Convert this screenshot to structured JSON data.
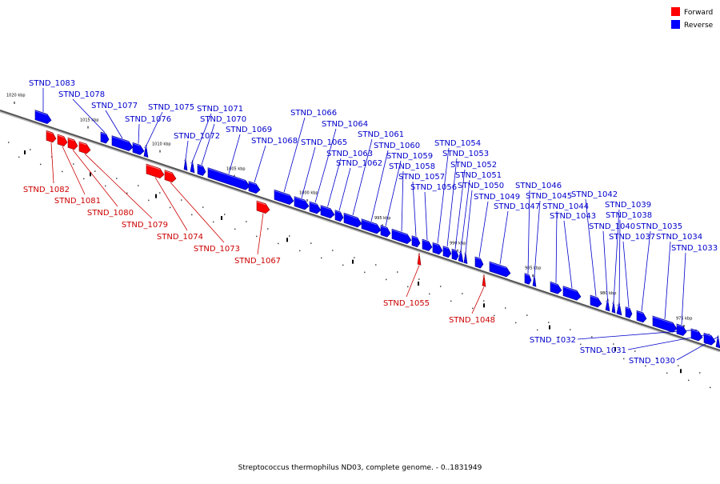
{
  "caption": "Streptococcus thermophilus ND03, complete genome. - 0..1831949",
  "legend": [
    {
      "label": "Forward",
      "color": "#ff0000"
    },
    {
      "label": "Reverse",
      "color": "#0000ff"
    }
  ],
  "colors": {
    "forward_fill": "#ff0000",
    "forward_label": "#cc0000",
    "reverse_fill": "#0000ff",
    "reverse_label": "#0000cc",
    "backbone": "#555555"
  },
  "axis_ticks_kbp": [
    975,
    980,
    985,
    990,
    995,
    1000,
    1005,
    1010,
    1015,
    1020
  ],
  "tick_unit": "kbp",
  "genes": [
    {
      "label": "STND_1083",
      "strand": "reverse"
    },
    {
      "label": "STND_1078",
      "strand": "reverse"
    },
    {
      "label": "STND_1077",
      "strand": "reverse"
    },
    {
      "label": "STND_1076",
      "strand": "reverse"
    },
    {
      "label": "STND_1075",
      "strand": "reverse"
    },
    {
      "label": "STND_1072",
      "strand": "reverse"
    },
    {
      "label": "STND_1071",
      "strand": "reverse"
    },
    {
      "label": "STND_1070",
      "strand": "reverse"
    },
    {
      "label": "STND_1069",
      "strand": "reverse"
    },
    {
      "label": "STND_1068",
      "strand": "reverse"
    },
    {
      "label": "STND_1066",
      "strand": "reverse"
    },
    {
      "label": "STND_1065",
      "strand": "reverse"
    },
    {
      "label": "STND_1064",
      "strand": "reverse"
    },
    {
      "label": "STND_1063",
      "strand": "reverse"
    },
    {
      "label": "STND_1062",
      "strand": "reverse"
    },
    {
      "label": "STND_1061",
      "strand": "reverse"
    },
    {
      "label": "STND_1060",
      "strand": "reverse"
    },
    {
      "label": "STND_1059",
      "strand": "reverse"
    },
    {
      "label": "STND_1058",
      "strand": "reverse"
    },
    {
      "label": "STND_1057",
      "strand": "reverse"
    },
    {
      "label": "STND_1056",
      "strand": "reverse"
    },
    {
      "label": "STND_1054",
      "strand": "reverse"
    },
    {
      "label": "STND_1053",
      "strand": "reverse"
    },
    {
      "label": "STND_1052",
      "strand": "reverse"
    },
    {
      "label": "STND_1051",
      "strand": "reverse"
    },
    {
      "label": "STND_1050",
      "strand": "reverse"
    },
    {
      "label": "STND_1049",
      "strand": "reverse"
    },
    {
      "label": "STND_1047",
      "strand": "reverse"
    },
    {
      "label": "STND_1046",
      "strand": "reverse"
    },
    {
      "label": "STND_1045",
      "strand": "reverse"
    },
    {
      "label": "STND_1044",
      "strand": "reverse"
    },
    {
      "label": "STND_1043",
      "strand": "reverse"
    },
    {
      "label": "STND_1042",
      "strand": "reverse"
    },
    {
      "label": "STND_1040",
      "strand": "reverse"
    },
    {
      "label": "STND_1039",
      "strand": "reverse"
    },
    {
      "label": "STND_1038",
      "strand": "reverse"
    },
    {
      "label": "STND_1037",
      "strand": "reverse"
    },
    {
      "label": "STND_1035",
      "strand": "reverse"
    },
    {
      "label": "STND_1034",
      "strand": "reverse"
    },
    {
      "label": "STND_1033",
      "strand": "reverse"
    },
    {
      "label": "STND_1032",
      "strand": "reverse"
    },
    {
      "label": "STND_1031",
      "strand": "reverse"
    },
    {
      "label": "STND_1030",
      "strand": "reverse"
    },
    {
      "label": "STND_1082",
      "strand": "forward"
    },
    {
      "label": "STND_1081",
      "strand": "forward"
    },
    {
      "label": "STND_1080",
      "strand": "forward"
    },
    {
      "label": "STND_1079",
      "strand": "forward"
    },
    {
      "label": "STND_1074",
      "strand": "forward"
    },
    {
      "label": "STND_1073",
      "strand": "forward"
    },
    {
      "label": "STND_1067",
      "strand": "forward"
    },
    {
      "label": "STND_1055",
      "strand": "forward"
    },
    {
      "label": "STND_1048",
      "strand": "forward"
    }
  ]
}
